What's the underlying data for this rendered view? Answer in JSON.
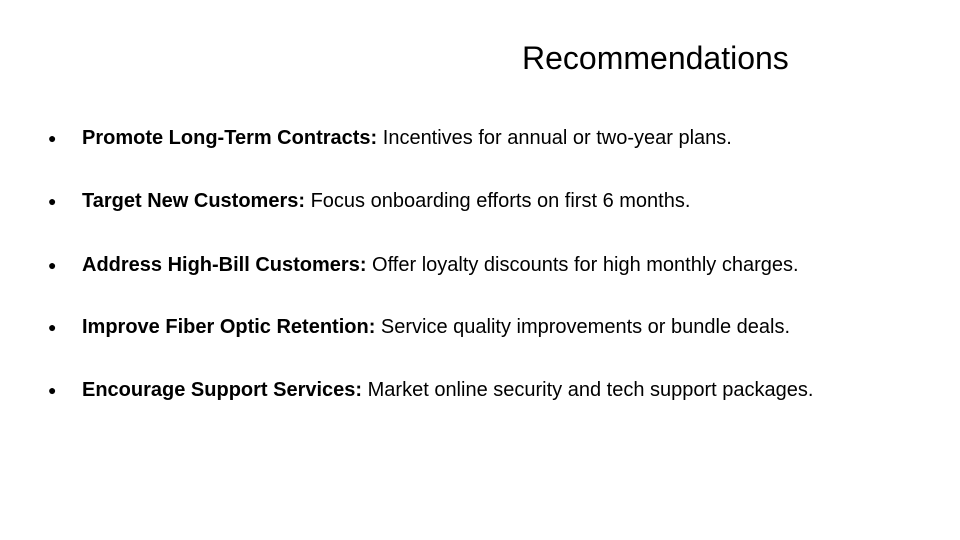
{
  "slide": {
    "title": "Recommendations",
    "bullets": [
      {
        "marker": "●",
        "lead": "Promote Long-Term Contracts:",
        "text": " Incentives for annual or two-year plans."
      },
      {
        "marker": "●",
        "lead": "Target New Customers:",
        "text": " Focus onboarding efforts on first 6 months."
      },
      {
        "marker": "●",
        "lead": "Address High-Bill Customers:",
        "text": " Offer loyalty discounts for high monthly charges."
      },
      {
        "marker": "●",
        "lead": "Improve Fiber Optic Retention:",
        "text": " Service quality improvements or bundle deals."
      },
      {
        "marker": "●",
        "lead": "Encourage Support Services:",
        "text": " Market online security and tech support packages."
      }
    ]
  }
}
